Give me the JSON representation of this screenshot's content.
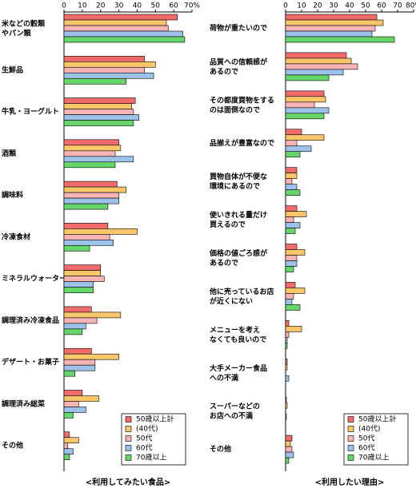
{
  "chart_data": [
    {
      "type": "hbar",
      "title": "<利用してみたい食品>",
      "categories": [
        "米などの穀類\nやパン類",
        "生鮮品",
        "牛乳・ヨーグルト",
        "酒類",
        "調味料",
        "冷凍食材",
        "ミネラルウォーター",
        "調理済み冷凍食品",
        "デザート・お菓子",
        "調理済み総菜",
        "その他"
      ],
      "series": [
        {
          "name": "50歳以上計",
          "color": "#f26b6b",
          "values": [
            62,
            44,
            39,
            30,
            29,
            24,
            20,
            15,
            15,
            10,
            3
          ]
        },
        {
          "name": "(40代)",
          "color": "#f9c66a",
          "values": [
            56,
            50,
            37,
            31,
            34,
            40,
            20,
            31,
            30,
            19,
            8
          ]
        },
        {
          "name": "50代",
          "color": "#f8b4b4",
          "values": [
            57,
            44,
            38,
            28,
            30,
            25,
            22,
            18,
            17,
            8,
            2
          ]
        },
        {
          "name": "60代",
          "color": "#9cc2ea",
          "values": [
            65,
            49,
            41,
            38,
            30,
            27,
            16,
            12,
            17,
            12,
            5
          ]
        },
        {
          "name": "70歳以上",
          "color": "#66d66a",
          "values": [
            66,
            34,
            38,
            28,
            24,
            14,
            16,
            10,
            6,
            5,
            3
          ]
        }
      ],
      "xlim": [
        0,
        70
      ],
      "xticks": [
        0,
        10,
        20,
        30,
        40,
        50,
        60,
        {
          "value": 70,
          "label": "70%"
        }
      ],
      "legend": "lower-right"
    },
    {
      "type": "hbar",
      "title": "<利用したい理由>",
      "categories": [
        "荷物が重たいので",
        "品質への信頼感が\nあるので",
        "その都度買物をする\nのは面倒なので",
        "品揃えが豊富なので",
        "買物自体が不便な\n環境にあるので",
        "使いきれる量だけ\n買えるので",
        "価格の値ごろ感が\nあるので",
        "他に売っているお店\nが近くにない",
        "メニューを考え\nなくても良いので",
        "大手メーカー食品\nへの不満",
        "スーパーなどの\nお店への不満",
        "その他"
      ],
      "series": [
        {
          "name": "50歳以上計",
          "color": "#f26b6b",
          "values": [
            57,
            38,
            24,
            10,
            7,
            7,
            7,
            6,
            2,
            1,
            0.5,
            4
          ]
        },
        {
          "name": "(40代)",
          "color": "#f9c66a",
          "values": [
            61,
            41,
            25,
            24,
            7,
            13,
            12,
            12,
            10,
            1,
            1,
            3
          ]
        },
        {
          "name": "50代",
          "color": "#f8b4b4",
          "values": [
            56,
            45,
            18,
            7,
            4,
            5,
            7,
            5,
            2,
            0,
            0,
            4
          ]
        },
        {
          "name": "60代",
          "color": "#9cc2ea",
          "values": [
            54,
            36,
            27,
            16,
            7,
            9,
            7,
            4,
            1,
            2,
            0.5,
            5
          ]
        },
        {
          "name": "70歳以上",
          "color": "#66d66a",
          "values": [
            68,
            27,
            24,
            9,
            9,
            6,
            5,
            9,
            1,
            0,
            0,
            2
          ]
        }
      ],
      "xlim": [
        0,
        80
      ],
      "xticks": [
        0,
        10,
        20,
        30,
        40,
        50,
        60,
        70,
        {
          "value": 80,
          "label": "80%"
        }
      ],
      "legend": "lower-right"
    }
  ]
}
